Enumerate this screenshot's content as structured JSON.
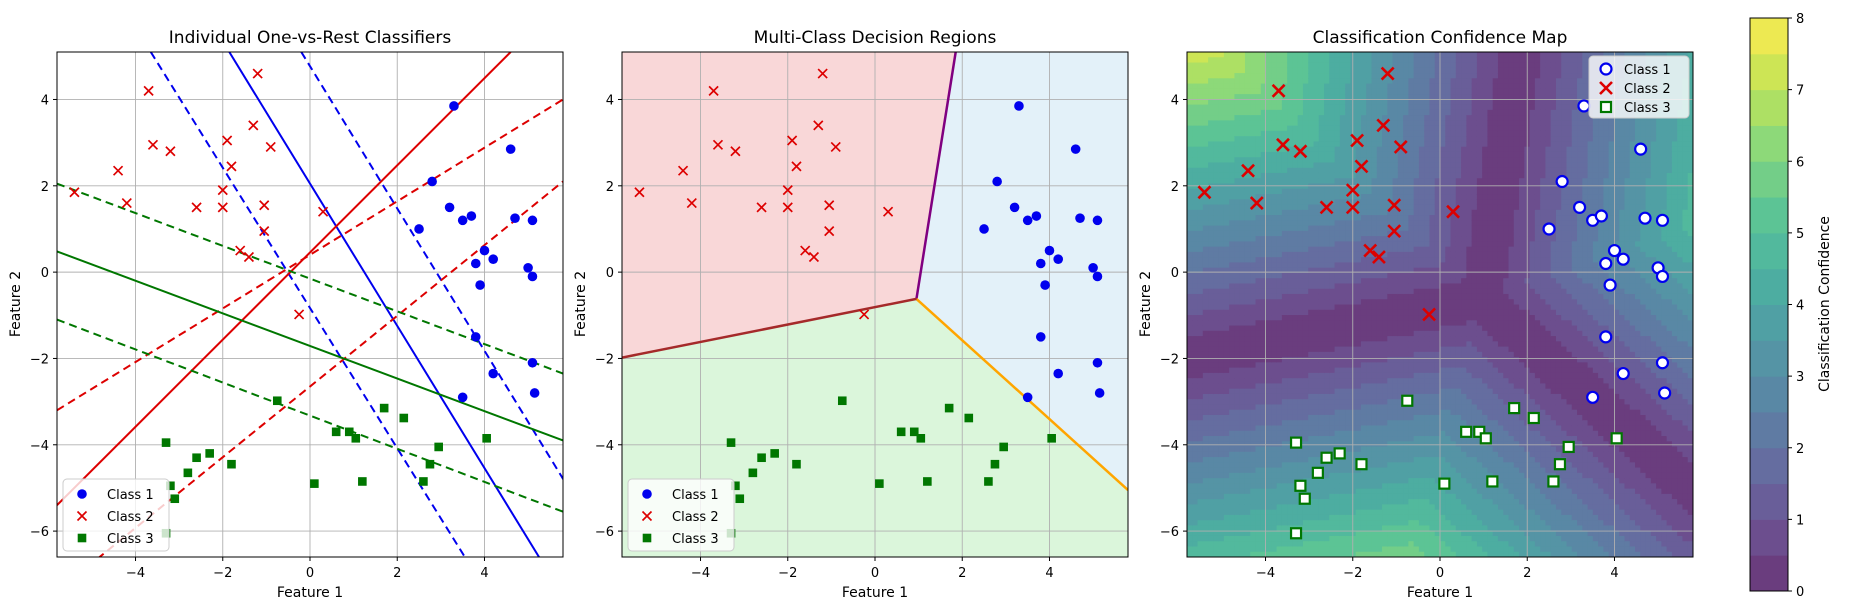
{
  "figure": {
    "titles": [
      "Individual One-vs-Rest Classifiers",
      "Multi-Class Decision Regions",
      "Classification Confidence Map"
    ],
    "xlabel": "Feature 1",
    "ylabel": "Feature 2",
    "colorbar_label": "Classification Confidence"
  },
  "legend": {
    "entries": [
      "Class 1",
      "Class 2",
      "Class 3"
    ],
    "placement": [
      "lower-left",
      "lower-left",
      "upper-right"
    ]
  },
  "colors": {
    "class1": "#0000ee",
    "class2": "#dd0000",
    "class3": "#007700",
    "region1": "#e3f1f9",
    "region2": "#f9d7d8",
    "region3": "#dbf6db",
    "boundary12": "#800080",
    "boundary13": "#ffa500",
    "boundary23": "#a52a2a"
  },
  "chart_data": [
    {
      "type": "scatter",
      "title": "Individual One-vs-Rest Classifiers",
      "xlabel": "Feature 1",
      "ylabel": "Feature 2",
      "xlim": [
        -5.8,
        5.8
      ],
      "ylim": [
        -6.6,
        5.1
      ],
      "xticks": [
        -4,
        -2,
        0,
        2,
        4
      ],
      "yticks": [
        -6,
        -4,
        -2,
        0,
        2,
        4
      ],
      "grid": true,
      "legend": "lower-left",
      "series": [
        {
          "name": "Class 1",
          "marker": "circle",
          "points": [
            [
              3.3,
              3.85
            ],
            [
              4.6,
              2.85
            ],
            [
              2.8,
              2.1
            ],
            [
              3.2,
              1.5
            ],
            [
              2.5,
              1.0
            ],
            [
              3.5,
              1.2
            ],
            [
              3.7,
              1.3
            ],
            [
              4.7,
              1.25
            ],
            [
              5.1,
              1.2
            ],
            [
              4.0,
              0.5
            ],
            [
              4.2,
              0.3
            ],
            [
              3.8,
              0.2
            ],
            [
              5.0,
              0.1
            ],
            [
              5.1,
              -0.1
            ],
            [
              3.9,
              -0.3
            ],
            [
              3.8,
              -1.5
            ],
            [
              5.1,
              -2.1
            ],
            [
              4.2,
              -2.35
            ],
            [
              3.5,
              -2.9
            ],
            [
              5.15,
              -2.8
            ]
          ]
        },
        {
          "name": "Class 2",
          "marker": "x",
          "points": [
            [
              -3.7,
              4.2
            ],
            [
              -1.2,
              4.6
            ],
            [
              -5.4,
              1.85
            ],
            [
              -4.4,
              2.35
            ],
            [
              -4.2,
              1.6
            ],
            [
              -3.6,
              2.95
            ],
            [
              -3.2,
              2.8
            ],
            [
              -1.3,
              3.4
            ],
            [
              -1.9,
              3.05
            ],
            [
              -0.9,
              2.9
            ],
            [
              -1.8,
              2.45
            ],
            [
              -2.0,
              1.9
            ],
            [
              -1.05,
              1.55
            ],
            [
              -2.6,
              1.5
            ],
            [
              -2.0,
              1.5
            ],
            [
              0.3,
              1.4
            ],
            [
              -1.05,
              0.95
            ],
            [
              -1.6,
              0.5
            ],
            [
              -1.4,
              0.35
            ],
            [
              -0.25,
              -0.98
            ]
          ]
        },
        {
          "name": "Class 3",
          "marker": "square",
          "points": [
            [
              -3.3,
              -3.95
            ],
            [
              -3.2,
              -4.95
            ],
            [
              -3.1,
              -5.25
            ],
            [
              -3.3,
              -6.05
            ],
            [
              -2.8,
              -4.65
            ],
            [
              -2.6,
              -4.3
            ],
            [
              -2.3,
              -4.2
            ],
            [
              -1.8,
              -4.45
            ],
            [
              -0.75,
              -2.98
            ],
            [
              0.6,
              -3.7
            ],
            [
              0.9,
              -3.7
            ],
            [
              1.05,
              -3.85
            ],
            [
              1.2,
              -4.85
            ],
            [
              0.1,
              -4.9
            ],
            [
              1.7,
              -3.15
            ],
            [
              2.15,
              -3.38
            ],
            [
              2.6,
              -4.85
            ],
            [
              2.75,
              -4.45
            ],
            [
              2.95,
              -4.05
            ],
            [
              4.05,
              -3.85
            ]
          ]
        }
      ],
      "classifier_lines": [
        {
          "class": "Class 1",
          "color": "class1",
          "solid": [
            [
              -1.85,
              5.1
            ],
            [
              5.25,
              -6.6
            ]
          ],
          "margins": [
            [
              [
                -3.65,
                5.1
              ],
              [
                3.55,
                -6.6
              ]
            ],
            [
              [
                -0.2,
                5.1
              ],
              [
                6.9,
                -6.6
              ]
            ]
          ]
        },
        {
          "class": "Class 2",
          "color": "class2",
          "solid": [
            [
              -5.8,
              -5.4
            ],
            [
              4.6,
              5.1
            ]
          ],
          "margins": [
            [
              [
                -5.8,
                -3.2
              ],
              [
                5.8,
                4.0
              ]
            ],
            [
              [
                -5.8,
                -7.4
              ],
              [
                5.8,
                2.1
              ]
            ]
          ]
        },
        {
          "class": "Class 3",
          "color": "class3",
          "solid": [
            [
              -5.8,
              0.48
            ],
            [
              5.8,
              -3.9
            ]
          ],
          "margins": [
            [
              [
                -5.8,
                2.05
              ],
              [
                5.8,
                -2.35
              ]
            ],
            [
              [
                -5.8,
                -1.1
              ],
              [
                5.8,
                -5.55
              ]
            ]
          ]
        }
      ]
    },
    {
      "type": "scatter",
      "title": "Multi-Class Decision Regions",
      "xlabel": "Feature 1",
      "ylabel": "Feature 2",
      "xlim": [
        -5.8,
        5.8
      ],
      "ylim": [
        -6.6,
        5.1
      ],
      "xticks": [
        -4,
        -2,
        0,
        2,
        4
      ],
      "yticks": [
        -6,
        -4,
        -2,
        0,
        2,
        4
      ],
      "grid": true,
      "legend": "lower-left",
      "junction": [
        0.95,
        -0.62
      ],
      "boundaries": [
        {
          "between": "Class 1 / Class 2",
          "color": "boundary12",
          "end": [
            1.85,
            5.1
          ]
        },
        {
          "between": "Class 1 / Class 3",
          "color": "boundary13",
          "end": [
            5.8,
            -5.05
          ]
        },
        {
          "between": "Class 2 / Class 3",
          "color": "boundary23",
          "end": [
            -5.8,
            -1.98
          ]
        }
      ],
      "series_ref": "same points as first panel"
    },
    {
      "type": "heatmap",
      "title": "Classification Confidence Map",
      "xlabel": "Feature 1",
      "ylabel": "Feature 2",
      "xlim": [
        -5.8,
        5.8
      ],
      "ylim": [
        -6.6,
        5.1
      ],
      "xticks": [
        -4,
        -2,
        0,
        2,
        4
      ],
      "yticks": [
        -6,
        -4,
        -2,
        0,
        2,
        4
      ],
      "grid": true,
      "legend": "upper-right",
      "colorbar": {
        "label": "Classification Confidence",
        "range": [
          0,
          8
        ],
        "ticks": [
          0,
          1,
          2,
          3,
          4,
          5,
          6,
          7,
          8
        ],
        "levels": 16,
        "colormap": "viridis"
      }
    }
  ]
}
